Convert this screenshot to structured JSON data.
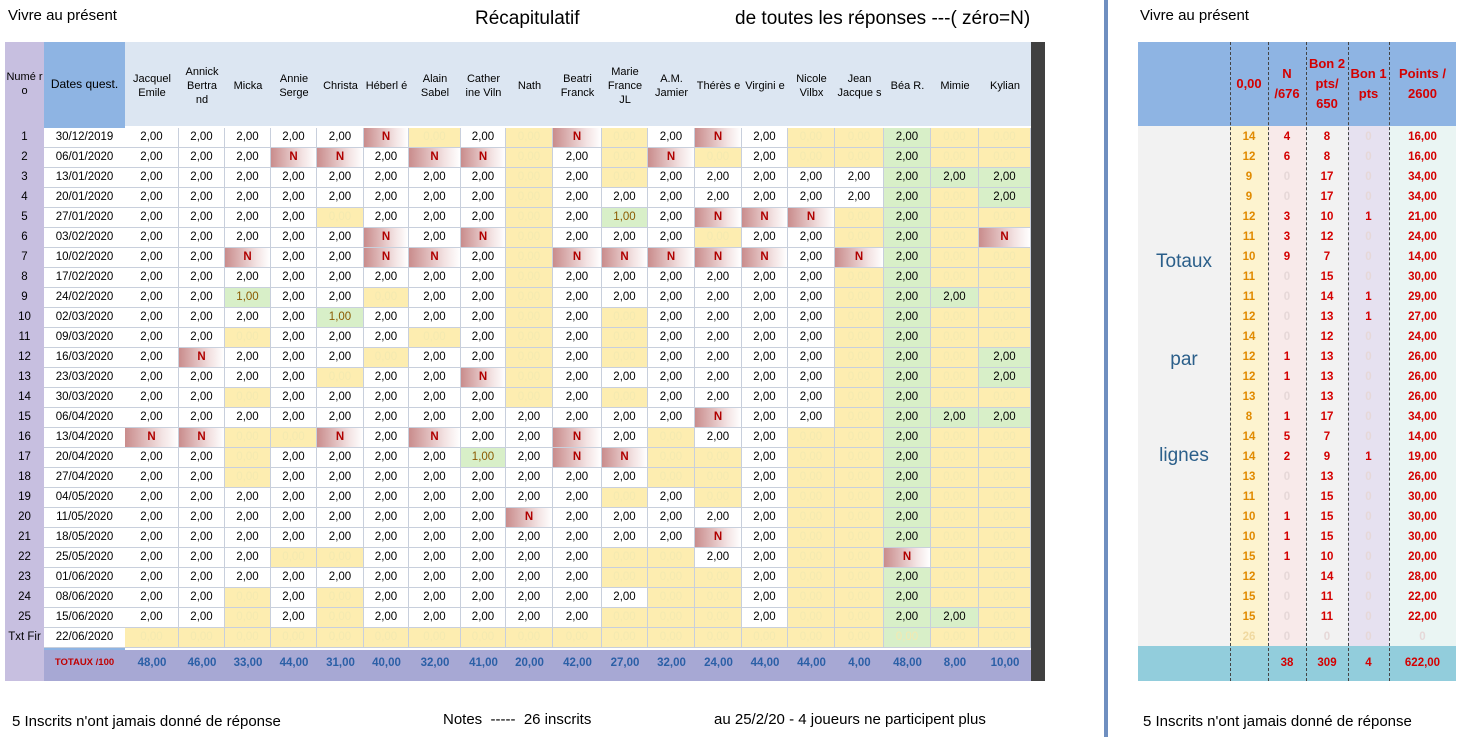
{
  "top": {
    "left_title": "Vivre au présent",
    "center_title": "Récapitulatif",
    "right_title": "de toutes les réponses ---( zéro=N)",
    "right_panel_title": "Vivre au présent"
  },
  "footer": {
    "note_left": "5 Inscrits n'ont jamais donné de réponse",
    "note_center": "Notes  -----  26 inscrits",
    "note_right": "au 25/2/20 - 4 joueurs ne participent plus",
    "note_far_right": "5 Inscrits n'ont jamais donné de réponse"
  },
  "table": {
    "header_num": "Numé ro",
    "header_dates": "Dates quest.",
    "players": [
      "Jacquel Emile",
      "Annick Bertra nd",
      "Micka",
      "Annie Serge",
      "Christa",
      "Héberl é",
      "Alain Sabel",
      "Cather ine Viln",
      "Nath",
      "Beatri Franck",
      "Marie France JL",
      "A.M. Jamier",
      "Thérès e",
      "Virgini e",
      "Nicole Vilbx",
      "Jean Jacque s",
      "Béa R.",
      "Mimie",
      "Kylian"
    ],
    "rows": [
      {
        "n": "1",
        "d": "30/12/2019",
        "v": [
          "2,00",
          "2,00",
          "2,00",
          "2,00",
          "2,00",
          "N",
          "0",
          "2,00",
          "0",
          "N",
          "0",
          "2,00",
          "N",
          "2,00",
          "0",
          "0",
          "2,00",
          "0",
          "0"
        ]
      },
      {
        "n": "2",
        "d": "06/01/2020",
        "v": [
          "2,00",
          "2,00",
          "2,00",
          "N",
          "N",
          "2,00",
          "N",
          "N",
          "0",
          "2,00",
          "0",
          "N",
          "0",
          "2,00",
          "0",
          "0",
          "2,00",
          "0",
          "0"
        ]
      },
      {
        "n": "3",
        "d": "13/01/2020",
        "v": [
          "2,00",
          "2,00",
          "2,00",
          "2,00",
          "2,00",
          "2,00",
          "2,00",
          "2,00",
          "0",
          "2,00",
          "0",
          "2,00",
          "2,00",
          "2,00",
          "2,00",
          "2,00",
          "2,00",
          "2,00",
          "2,00"
        ]
      },
      {
        "n": "4",
        "d": "20/01/2020",
        "v": [
          "2,00",
          "2,00",
          "2,00",
          "2,00",
          "2,00",
          "2,00",
          "2,00",
          "2,00",
          "0",
          "2,00",
          "2,00",
          "2,00",
          "2,00",
          "2,00",
          "2,00",
          "2,00",
          "2,00",
          "0",
          "2,00"
        ]
      },
      {
        "n": "5",
        "d": "27/01/2020",
        "v": [
          "2,00",
          "2,00",
          "2,00",
          "2,00",
          "0",
          "2,00",
          "2,00",
          "2,00",
          "0",
          "2,00",
          "1,00",
          "2,00",
          "N",
          "N",
          "N",
          "0",
          "2,00",
          "0",
          "0"
        ]
      },
      {
        "n": "6",
        "d": "03/02/2020",
        "v": [
          "2,00",
          "2,00",
          "2,00",
          "2,00",
          "2,00",
          "N",
          "2,00",
          "N",
          "0",
          "2,00",
          "2,00",
          "2,00",
          "0",
          "2,00",
          "2,00",
          "0",
          "2,00",
          "0",
          "N"
        ]
      },
      {
        "n": "7",
        "d": "10/02/2020",
        "v": [
          "2,00",
          "2,00",
          "N",
          "2,00",
          "2,00",
          "N",
          "N",
          "2,00",
          "0",
          "N",
          "N",
          "N",
          "N",
          "N",
          "2,00",
          "N",
          "2,00",
          "0",
          "0"
        ]
      },
      {
        "n": "8",
        "d": "17/02/2020",
        "v": [
          "2,00",
          "2,00",
          "2,00",
          "2,00",
          "2,00",
          "2,00",
          "2,00",
          "2,00",
          "0",
          "2,00",
          "2,00",
          "2,00",
          "2,00",
          "2,00",
          "2,00",
          "0",
          "2,00",
          "0",
          "0"
        ]
      },
      {
        "n": "9",
        "d": "24/02/2020",
        "v": [
          "2,00",
          "2,00",
          "1,00",
          "2,00",
          "2,00",
          "0",
          "2,00",
          "2,00",
          "0",
          "2,00",
          "2,00",
          "2,00",
          "2,00",
          "2,00",
          "2,00",
          "0",
          "2,00",
          "2,00",
          "0"
        ]
      },
      {
        "n": "10",
        "d": "02/03/2020",
        "v": [
          "2,00",
          "2,00",
          "2,00",
          "2,00",
          "1,00",
          "2,00",
          "2,00",
          "2,00",
          "0",
          "2,00",
          "0",
          "2,00",
          "2,00",
          "2,00",
          "2,00",
          "0",
          "2,00",
          "0",
          "0"
        ]
      },
      {
        "n": "11",
        "d": "09/03/2020",
        "v": [
          "2,00",
          "2,00",
          "0",
          "2,00",
          "2,00",
          "2,00",
          "0",
          "2,00",
          "0",
          "2,00",
          "0",
          "2,00",
          "2,00",
          "2,00",
          "2,00",
          "0",
          "2,00",
          "0",
          "0"
        ]
      },
      {
        "n": "12",
        "d": "16/03/2020",
        "v": [
          "2,00",
          "N",
          "2,00",
          "2,00",
          "2,00",
          "0",
          "2,00",
          "2,00",
          "0",
          "2,00",
          "0",
          "2,00",
          "2,00",
          "2,00",
          "2,00",
          "0",
          "2,00",
          "0",
          "2,00"
        ]
      },
      {
        "n": "13",
        "d": "23/03/2020",
        "v": [
          "2,00",
          "2,00",
          "2,00",
          "2,00",
          "0",
          "2,00",
          "2,00",
          "N",
          "0",
          "2,00",
          "2,00",
          "2,00",
          "2,00",
          "2,00",
          "2,00",
          "0",
          "2,00",
          "0",
          "2,00"
        ]
      },
      {
        "n": "14",
        "d": "30/03/2020",
        "v": [
          "2,00",
          "2,00",
          "0",
          "2,00",
          "2,00",
          "2,00",
          "2,00",
          "2,00",
          "0",
          "2,00",
          "0",
          "2,00",
          "2,00",
          "2,00",
          "2,00",
          "0",
          "2,00",
          "0",
          "0"
        ]
      },
      {
        "n": "15",
        "d": "06/04/2020",
        "v": [
          "2,00",
          "2,00",
          "2,00",
          "2,00",
          "2,00",
          "2,00",
          "2,00",
          "2,00",
          "2,00",
          "2,00",
          "2,00",
          "2,00",
          "N",
          "2,00",
          "2,00",
          "0",
          "2,00",
          "2,00",
          "2,00"
        ]
      },
      {
        "n": "16",
        "d": "13/04/2020",
        "v": [
          "N",
          "N",
          "0",
          "0",
          "N",
          "2,00",
          "N",
          "2,00",
          "2,00",
          "N",
          "2,00",
          "0",
          "2,00",
          "2,00",
          "0",
          "0",
          "2,00",
          "0",
          "0"
        ]
      },
      {
        "n": "17",
        "d": "20/04/2020",
        "v": [
          "2,00",
          "2,00",
          "0",
          "2,00",
          "2,00",
          "2,00",
          "2,00",
          "1,00",
          "2,00",
          "N",
          "N",
          "0",
          "0",
          "2,00",
          "0",
          "0",
          "2,00",
          "0",
          "0"
        ]
      },
      {
        "n": "18",
        "d": "27/04/2020",
        "v": [
          "2,00",
          "2,00",
          "0",
          "2,00",
          "2,00",
          "2,00",
          "2,00",
          "2,00",
          "2,00",
          "2,00",
          "2,00",
          "0",
          "0",
          "2,00",
          "0",
          "0",
          "2,00",
          "0",
          "0"
        ]
      },
      {
        "n": "19",
        "d": "04/05/2020",
        "v": [
          "2,00",
          "2,00",
          "2,00",
          "2,00",
          "2,00",
          "2,00",
          "2,00",
          "2,00",
          "2,00",
          "2,00",
          "0",
          "2,00",
          "0",
          "2,00",
          "0",
          "0",
          "2,00",
          "0",
          "0"
        ]
      },
      {
        "n": "20",
        "d": "11/05/2020",
        "v": [
          "2,00",
          "2,00",
          "2,00",
          "2,00",
          "2,00",
          "2,00",
          "2,00",
          "2,00",
          "N",
          "2,00",
          "2,00",
          "2,00",
          "2,00",
          "2,00",
          "0",
          "0",
          "2,00",
          "0",
          "0"
        ]
      },
      {
        "n": "21",
        "d": "18/05/2020",
        "v": [
          "2,00",
          "2,00",
          "2,00",
          "2,00",
          "2,00",
          "2,00",
          "2,00",
          "2,00",
          "2,00",
          "2,00",
          "2,00",
          "2,00",
          "N",
          "2,00",
          "0",
          "0",
          "2,00",
          "0",
          "0"
        ]
      },
      {
        "n": "22",
        "d": "25/05/2020",
        "v": [
          "2,00",
          "2,00",
          "2,00",
          "0",
          "0",
          "2,00",
          "2,00",
          "2,00",
          "2,00",
          "2,00",
          "0",
          "0",
          "2,00",
          "2,00",
          "0",
          "0",
          "N",
          "0",
          "0"
        ]
      },
      {
        "n": "23",
        "d": "01/06/2020",
        "v": [
          "2,00",
          "2,00",
          "2,00",
          "2,00",
          "2,00",
          "2,00",
          "2,00",
          "2,00",
          "2,00",
          "2,00",
          "0",
          "0",
          "0",
          "2,00",
          "0",
          "0",
          "2,00",
          "0",
          "0"
        ]
      },
      {
        "n": "24",
        "d": "08/06/2020",
        "v": [
          "2,00",
          "2,00",
          "0",
          "2,00",
          "0",
          "2,00",
          "2,00",
          "2,00",
          "2,00",
          "2,00",
          "2,00",
          "0",
          "0",
          "2,00",
          "0",
          "0",
          "2,00",
          "0",
          "0"
        ]
      },
      {
        "n": "25",
        "d": "15/06/2020",
        "v": [
          "2,00",
          "2,00",
          "0",
          "2,00",
          "0",
          "2,00",
          "2,00",
          "2,00",
          "2,00",
          "2,00",
          "0",
          "0",
          "0",
          "2,00",
          "0",
          "0",
          "2,00",
          "2,00",
          "0"
        ]
      },
      {
        "n": "Txt Fir",
        "d": "22/06/2020",
        "v": [
          "0",
          "0",
          "0",
          "0",
          "0",
          "0",
          "0",
          "0",
          "0",
          "0",
          "0",
          "0",
          "0",
          "0",
          "0",
          "0",
          "0",
          "0",
          "0"
        ]
      }
    ],
    "totals_label": "TOTAUX  /100",
    "totals": [
      "48,00",
      "46,00",
      "33,00",
      "44,00",
      "31,00",
      "40,00",
      "32,00",
      "41,00",
      "20,00",
      "42,00",
      "27,00",
      "32,00",
      "24,00",
      "44,00",
      "44,00",
      "4,00",
      "48,00",
      "8,00",
      "10,00"
    ]
  },
  "right": {
    "headers": [
      "0,00",
      "N /676",
      "Bon 2 pts/ 650",
      "Bon 1 pts",
      "Points / 2600"
    ],
    "side_words": [
      "Totaux",
      "par",
      "lignes"
    ],
    "rows": [
      [
        "14",
        "4",
        "8",
        "0",
        "16,00"
      ],
      [
        "12",
        "6",
        "8",
        "0",
        "16,00"
      ],
      [
        "9",
        "0",
        "17",
        "0",
        "34,00"
      ],
      [
        "9",
        "0",
        "17",
        "0",
        "34,00"
      ],
      [
        "12",
        "3",
        "10",
        "1",
        "21,00"
      ],
      [
        "11",
        "3",
        "12",
        "0",
        "24,00"
      ],
      [
        "10",
        "9",
        "7",
        "0",
        "14,00"
      ],
      [
        "11",
        "0",
        "15",
        "0",
        "30,00"
      ],
      [
        "11",
        "0",
        "14",
        "1",
        "29,00"
      ],
      [
        "12",
        "0",
        "13",
        "1",
        "27,00"
      ],
      [
        "14",
        "0",
        "12",
        "0",
        "24,00"
      ],
      [
        "12",
        "1",
        "13",
        "0",
        "26,00"
      ],
      [
        "12",
        "1",
        "13",
        "0",
        "26,00"
      ],
      [
        "13",
        "0",
        "13",
        "0",
        "26,00"
      ],
      [
        "8",
        "1",
        "17",
        "0",
        "34,00"
      ],
      [
        "14",
        "5",
        "7",
        "0",
        "14,00"
      ],
      [
        "14",
        "2",
        "9",
        "1",
        "19,00"
      ],
      [
        "13",
        "0",
        "13",
        "0",
        "26,00"
      ],
      [
        "11",
        "0",
        "15",
        "0",
        "30,00"
      ],
      [
        "10",
        "1",
        "15",
        "0",
        "30,00"
      ],
      [
        "10",
        "1",
        "15",
        "0",
        "30,00"
      ],
      [
        "15",
        "1",
        "10",
        "0",
        "20,00"
      ],
      [
        "12",
        "0",
        "14",
        "0",
        "28,00"
      ],
      [
        "15",
        "0",
        "11",
        "0",
        "22,00"
      ],
      [
        "15",
        "0",
        "11",
        "0",
        "22,00"
      ],
      [
        "26",
        "0",
        "0",
        "0",
        "0"
      ]
    ],
    "totals": [
      "",
      "38",
      "309",
      "4",
      "622,00"
    ]
  },
  "colors": {
    "blue_header": "#8eb4e3",
    "lavender": "#c7bfe0",
    "yellow": "#fdedb0",
    "green": "#d8efc8",
    "red_n": "#c98c8c",
    "teal": "#92cddc",
    "total_row": "#a7a8d4"
  }
}
